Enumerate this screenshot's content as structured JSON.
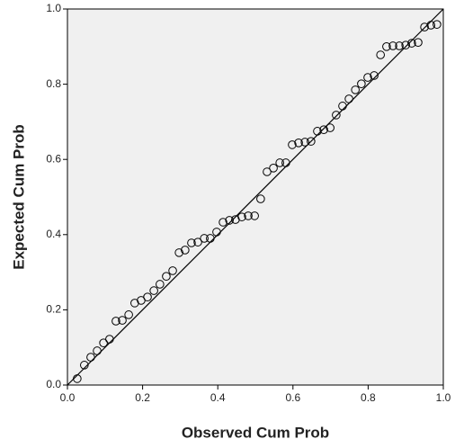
{
  "chart_data": {
    "type": "scatter",
    "x_label": "Observed Cum Prob",
    "y_label": "Expected Cum Prob",
    "x": [
      0.026,
      0.045,
      0.062,
      0.079,
      0.096,
      0.112,
      0.129,
      0.146,
      0.163,
      0.179,
      0.196,
      0.213,
      0.23,
      0.246,
      0.263,
      0.28,
      0.297,
      0.313,
      0.33,
      0.347,
      0.364,
      0.38,
      0.397,
      0.414,
      0.431,
      0.447,
      0.464,
      0.481,
      0.498,
      0.514,
      0.531,
      0.548,
      0.565,
      0.581,
      0.598,
      0.615,
      0.632,
      0.648,
      0.665,
      0.682,
      0.699,
      0.715,
      0.732,
      0.749,
      0.766,
      0.782,
      0.799,
      0.816,
      0.833,
      0.849,
      0.866,
      0.883,
      0.9,
      0.916,
      0.933,
      0.95,
      0.967,
      0.983
    ],
    "values": [
      0.017,
      0.053,
      0.074,
      0.091,
      0.112,
      0.122,
      0.17,
      0.172,
      0.187,
      0.218,
      0.225,
      0.234,
      0.251,
      0.268,
      0.289,
      0.304,
      0.352,
      0.359,
      0.378,
      0.38,
      0.39,
      0.39,
      0.407,
      0.433,
      0.438,
      0.44,
      0.447,
      0.45,
      0.45,
      0.495,
      0.567,
      0.577,
      0.591,
      0.591,
      0.639,
      0.644,
      0.646,
      0.648,
      0.675,
      0.679,
      0.684,
      0.718,
      0.742,
      0.761,
      0.785,
      0.801,
      0.818,
      0.823,
      0.878,
      0.9,
      0.902,
      0.902,
      0.904,
      0.909,
      0.911,
      0.952,
      0.957,
      0.959
    ],
    "marker": "open-circle",
    "color": "#000000",
    "reference_line": true,
    "xlim": [
      0,
      1
    ],
    "ylim": [
      0,
      1
    ],
    "xticks": [
      {
        "value": 0,
        "label": "0.0"
      },
      {
        "value": 0.2,
        "label": "0.2"
      },
      {
        "value": 0.4,
        "label": "0.4"
      },
      {
        "value": 0.6,
        "label": "0.6"
      },
      {
        "value": 0.8,
        "label": "0.8"
      },
      {
        "value": 1,
        "label": "1.0"
      }
    ],
    "yticks": [
      {
        "value": 0,
        "label": "0.0"
      },
      {
        "value": 0.2,
        "label": "0.2"
      },
      {
        "value": 0.4,
        "label": "0.4"
      },
      {
        "value": 0.6,
        "label": "0.6"
      },
      {
        "value": 0.8,
        "label": "0.8"
      },
      {
        "value": 1,
        "label": "1.0"
      }
    ],
    "grid": false
  }
}
